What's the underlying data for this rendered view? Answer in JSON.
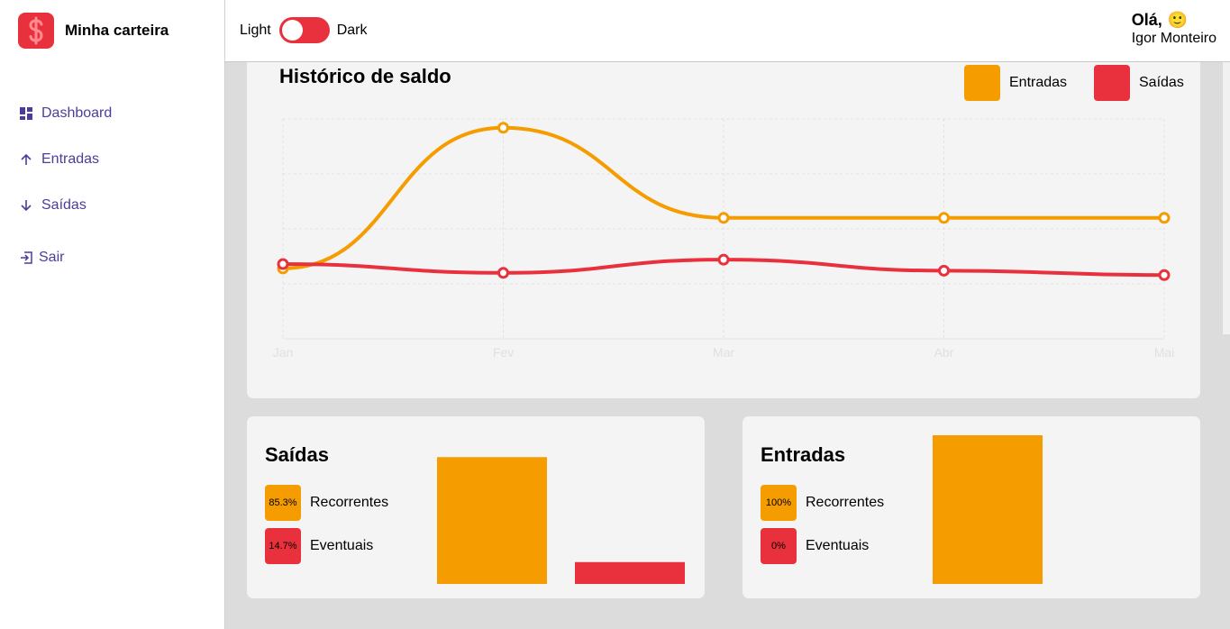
{
  "brand": {
    "name": "Minha carteira",
    "logo_icon": "dollar-sign-icon",
    "logo_color": "#e8313c"
  },
  "sidebar": {
    "items": [
      {
        "label": "Dashboard",
        "icon": "dashboard-icon"
      },
      {
        "label": "Entradas",
        "icon": "arrow-up-icon"
      },
      {
        "label": "Saídas",
        "icon": "arrow-down-icon"
      },
      {
        "label": "Sair",
        "icon": "exit-icon"
      }
    ]
  },
  "header": {
    "theme": {
      "light_label": "Light",
      "dark_label": "Dark",
      "dark_enabled": false
    },
    "greeting": "Olá,",
    "greeting_emoji": "🙂",
    "user_name": "Igor Monteiro"
  },
  "colors": {
    "entradas": "#f59c00",
    "saidas": "#e8313c",
    "accent": "#4a3d9c"
  },
  "history": {
    "title": "Histórico de saldo",
    "legend": [
      {
        "label": "Entradas",
        "color": "#f59c00"
      },
      {
        "label": "Saídas",
        "color": "#e8313c"
      }
    ]
  },
  "saidas_card": {
    "title": "Saídas",
    "items": [
      {
        "percent": "85.3%",
        "label": "Recorrentes",
        "color": "#f59c00"
      },
      {
        "percent": "14.7%",
        "label": "Eventuais",
        "color": "#e8313c"
      }
    ]
  },
  "entradas_card": {
    "title": "Entradas",
    "items": [
      {
        "percent": "100%",
        "label": "Recorrentes",
        "color": "#f59c00"
      },
      {
        "percent": "0%",
        "label": "Eventuais",
        "color": "#e8313c"
      }
    ]
  },
  "chart_data": [
    {
      "type": "line",
      "title": "Histórico de saldo",
      "categories": [
        "Jan",
        "Fev",
        "Mar",
        "Abr",
        "Mai"
      ],
      "ylim": [
        0,
        100
      ],
      "grid": true,
      "legend_position": "top-right",
      "series": [
        {
          "name": "Entradas",
          "color": "#f59c00",
          "values": [
            32,
            96,
            55,
            55,
            55
          ]
        },
        {
          "name": "Saídas",
          "color": "#e8313c",
          "values": [
            34,
            30,
            36,
            31,
            29
          ]
        }
      ]
    },
    {
      "type": "bar",
      "title": "Saídas",
      "categories": [
        "Recorrentes",
        "Eventuais"
      ],
      "values": [
        85.3,
        14.7
      ],
      "colors": [
        "#f59c00",
        "#e8313c"
      ],
      "ylim": [
        0,
        100
      ]
    },
    {
      "type": "bar",
      "title": "Entradas",
      "categories": [
        "Recorrentes",
        "Eventuais"
      ],
      "values": [
        100,
        0
      ],
      "colors": [
        "#f59c00",
        "#e8313c"
      ],
      "ylim": [
        0,
        100
      ]
    }
  ]
}
